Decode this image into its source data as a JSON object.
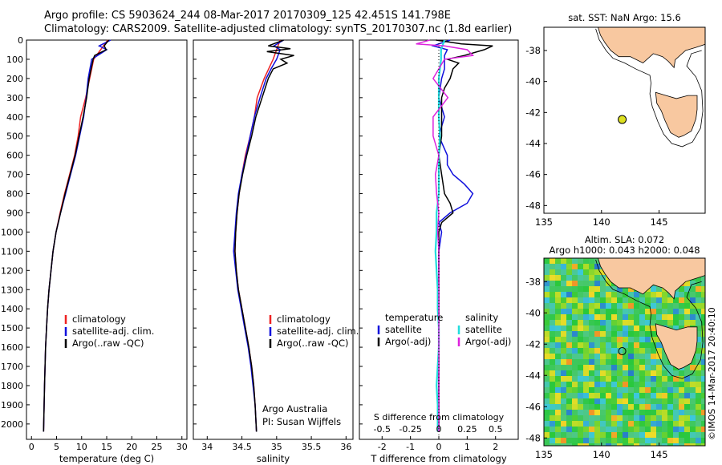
{
  "header": {
    "title_line1": "Argo profile: CS 5903624_244 08-Mar-2017 20170309_125 42.451S 141.798E",
    "title_line2": "Climatology: CARS2009. Satellite-adjusted climatology: synTS_20170307.nc (1.8d earlier)"
  },
  "colors": {
    "climatology": "#ee2222",
    "satellite_adj": "#1010dd",
    "argo": "#000000",
    "sal_satellite": "#22dddd",
    "sal_argo": "#dd22dd",
    "land": "#f8c8a0",
    "argo_marker": "#dde020"
  },
  "chart_data": [
    {
      "type": "line",
      "xlabel": "temperature (deg C)",
      "xlim": [
        -1,
        31
      ],
      "ylim": [
        2080,
        0
      ],
      "y_reversed": true,
      "xticks": [
        0,
        5,
        10,
        15,
        20,
        25,
        30
      ],
      "yticks": [
        0,
        100,
        200,
        300,
        400,
        500,
        600,
        700,
        800,
        900,
        1000,
        1100,
        1200,
        1300,
        1400,
        1500,
        1600,
        1700,
        1800,
        1900,
        2000
      ],
      "legend": [
        "climatology",
        "satellite-adj. clim.",
        "Argo(..raw -QC)"
      ],
      "legend_placement": "lower-middle",
      "series": [
        {
          "name": "climatology",
          "color": "#ee2222",
          "depth": [
            0,
            50,
            100,
            200,
            300,
            400,
            500,
            600,
            700,
            800,
            900,
            1000,
            1100,
            1200,
            1300,
            1400,
            1500,
            1600,
            1800,
            2040
          ],
          "values": [
            15.2,
            13.8,
            12.4,
            11.6,
            10.8,
            9.8,
            9.3,
            8.6,
            7.6,
            6.6,
            5.7,
            4.9,
            4.3,
            3.9,
            3.5,
            3.2,
            3.0,
            2.8,
            2.6,
            2.4
          ]
        },
        {
          "name": "satellite-adj. clim.",
          "color": "#1010dd",
          "depth": [
            0,
            30,
            50,
            100,
            200,
            300,
            400,
            500,
            600,
            700,
            800,
            900,
            1000,
            1100,
            1200,
            1300,
            1400,
            1500,
            1600,
            1800,
            2040
          ],
          "values": [
            15.8,
            13.5,
            15.0,
            12.0,
            11.3,
            10.9,
            10.4,
            9.6,
            8.8,
            7.8,
            6.8,
            5.8,
            4.9,
            4.3,
            3.9,
            3.5,
            3.2,
            3.0,
            2.8,
            2.6,
            2.4
          ]
        },
        {
          "name": "Argo(..raw -QC)",
          "color": "#000000",
          "depth": [
            0,
            30,
            50,
            80,
            100,
            200,
            300,
            400,
            500,
            600,
            700,
            800,
            900,
            1000,
            1100,
            1200,
            1300,
            1400,
            1500,
            1600,
            1800,
            2040
          ],
          "values": [
            15.4,
            14.5,
            14.9,
            12.6,
            12.3,
            11.5,
            11.0,
            10.3,
            9.5,
            8.7,
            7.7,
            6.7,
            5.8,
            4.9,
            4.3,
            3.9,
            3.5,
            3.2,
            3.0,
            2.8,
            2.6,
            2.4
          ]
        }
      ]
    },
    {
      "type": "line",
      "xlabel": "salinity",
      "xlim": [
        33.8,
        36.1
      ],
      "ylim": [
        2080,
        0
      ],
      "y_reversed": true,
      "xticks": [
        34,
        34.5,
        35,
        35.5,
        36
      ],
      "legend": [
        "climatology",
        "satellite-adj. clim.",
        "Argo(..raw -QC)"
      ],
      "legend_placement": "lower-middle",
      "annotation": [
        "Argo Australia",
        "PI: Susan Wijffels"
      ],
      "series": [
        {
          "name": "climatology",
          "color": "#ee2222",
          "depth": [
            0,
            50,
            100,
            200,
            300,
            400,
            500,
            600,
            700,
            800,
            900,
            1000,
            1100,
            1200,
            1300,
            1400,
            1500,
            1600,
            1700,
            1800,
            1900,
            2040
          ],
          "values": [
            35.05,
            35.0,
            34.95,
            34.82,
            34.72,
            34.68,
            34.62,
            34.55,
            34.5,
            34.46,
            34.43,
            34.41,
            34.4,
            34.42,
            34.45,
            34.5,
            34.55,
            34.6,
            34.64,
            34.67,
            34.69,
            34.71
          ]
        },
        {
          "name": "satellite-adj. clim.",
          "color": "#1010dd",
          "depth": [
            0,
            30,
            50,
            100,
            150,
            200,
            300,
            400,
            500,
            600,
            700,
            800,
            900,
            1000,
            1100,
            1200,
            1300,
            1400,
            1500,
            1600,
            1700,
            1800,
            1900,
            2040
          ],
          "values": [
            35.1,
            34.96,
            35.05,
            35.0,
            34.92,
            34.85,
            34.76,
            34.68,
            34.62,
            34.56,
            34.5,
            34.45,
            34.42,
            34.4,
            34.38,
            34.41,
            34.44,
            34.49,
            34.54,
            34.59,
            34.63,
            34.66,
            34.69,
            34.71
          ]
        },
        {
          "name": "Argo(..raw -QC)",
          "color": "#000000",
          "depth": [
            0,
            30,
            45,
            60,
            80,
            100,
            120,
            150,
            200,
            300,
            400,
            500,
            600,
            700,
            800,
            900,
            1000,
            1100,
            1200,
            1300,
            1400,
            1500,
            1600,
            1700,
            1800,
            1900,
            2040
          ],
          "values": [
            35.1,
            34.88,
            35.2,
            34.86,
            35.25,
            35.06,
            35.15,
            34.95,
            34.88,
            34.79,
            34.7,
            34.64,
            34.57,
            34.51,
            34.46,
            34.43,
            34.41,
            34.4,
            34.42,
            34.45,
            34.5,
            34.55,
            34.6,
            34.64,
            34.67,
            34.69,
            34.71
          ]
        }
      ]
    },
    {
      "type": "line",
      "xlabel": "T difference from climatology",
      "xlabel_top": "S difference from climatology",
      "xlim": [
        -2.8,
        2.8
      ],
      "ylim": [
        2080,
        0
      ],
      "y_reversed": true,
      "xticks": [
        -2,
        -1,
        0,
        1,
        2
      ],
      "xticks_top": [
        -0.5,
        -0.25,
        0,
        0.25,
        0.5
      ],
      "legend": [
        "temperature",
        "satellite",
        "Argo(-adj)",
        "salinity",
        "satellite",
        "Argo(-adj)"
      ],
      "legend_placement": "lower-middle",
      "series": [
        {
          "name": "temperature satellite",
          "color": "#1010dd",
          "depth": [
            0,
            30,
            50,
            80,
            100,
            150,
            200,
            300,
            400,
            500,
            600,
            650,
            700,
            750,
            800,
            850,
            900,
            950,
            1000,
            1100,
            1200,
            1300,
            1500,
            1700,
            2040
          ],
          "values": [
            0.4,
            -0.2,
            0.3,
            0.2,
            0.2,
            0.2,
            0.1,
            0.0,
            0.2,
            0.0,
            0.3,
            0.3,
            0.5,
            0.9,
            1.2,
            1.0,
            0.4,
            0.0,
            0.1,
            0.0,
            0.0,
            0.0,
            0.0,
            0.0,
            0.0
          ]
        },
        {
          "name": "temperature Argo(-adj)",
          "color": "#000000",
          "depth": [
            0,
            20,
            30,
            50,
            80,
            100,
            120,
            150,
            200,
            250,
            300,
            400,
            500,
            600,
            700,
            800,
            850,
            900,
            950,
            1000,
            1100,
            1200,
            1400,
            2040
          ],
          "values": [
            -0.1,
            0.8,
            1.9,
            1.6,
            0.9,
            0.3,
            0.7,
            0.5,
            0.4,
            0.2,
            0.1,
            0.1,
            0.1,
            0.0,
            0.1,
            0.2,
            0.4,
            0.5,
            0.1,
            0.0,
            0.0,
            0.0,
            0.0,
            0.0
          ]
        },
        {
          "name": "salinity satellite",
          "color": "#22dddd",
          "depth": [
            0,
            50,
            100,
            200,
            300,
            400,
            500,
            600,
            700,
            800,
            900,
            1000,
            1100,
            1200,
            1300,
            1400,
            1500,
            1600,
            1700,
            1800,
            1900,
            2040
          ],
          "values": [
            0.05,
            0.02,
            0.02,
            0.0,
            0.0,
            0.0,
            0.01,
            0.0,
            0.0,
            0.0,
            -0.02,
            -0.02,
            -0.03,
            -0.02,
            -0.01,
            -0.01,
            0.0,
            0.0,
            -0.01,
            -0.02,
            -0.01,
            -0.01
          ]
        },
        {
          "name": "salinity Argo(-adj)",
          "color": "#dd22dd",
          "depth": [
            0,
            20,
            30,
            50,
            80,
            100,
            150,
            200,
            300,
            400,
            500,
            600,
            700,
            800,
            900,
            1000,
            1100,
            1200,
            1300,
            1500,
            2040
          ],
          "values": [
            -0.08,
            -0.2,
            0.05,
            0.25,
            0.3,
            0.05,
            0.0,
            -0.05,
            0.08,
            -0.05,
            -0.05,
            0.0,
            -0.03,
            -0.02,
            0.0,
            -0.01,
            0.0,
            0.0,
            0.0,
            0.0,
            0.0
          ]
        }
      ]
    },
    {
      "type": "map",
      "title": "sat. SST: NaN Argo: 15.6",
      "xlim": [
        135,
        149
      ],
      "ylim": [
        -48.5,
        -36.5
      ],
      "xticks": [
        135,
        140,
        145
      ],
      "yticks": [
        -38,
        -40,
        -42,
        -44,
        -46,
        -48
      ],
      "argo_position": {
        "lon": 141.798,
        "lat": -42.451
      }
    },
    {
      "type": "map",
      "title_line1": "Altim. SLA: 0.072",
      "title_line2": "Argo h1000: 0.043 h2000: 0.048",
      "xlim": [
        135,
        149
      ],
      "ylim": [
        -48.5,
        -36.5
      ],
      "xticks": [
        135,
        140,
        145
      ],
      "yticks": [
        -38,
        -40,
        -42,
        -44,
        -46,
        -48
      ],
      "argo_position": {
        "lon": 141.798,
        "lat": -42.451
      },
      "side_label": "©IMOS 14-Mar-2017 20:40:10"
    }
  ]
}
